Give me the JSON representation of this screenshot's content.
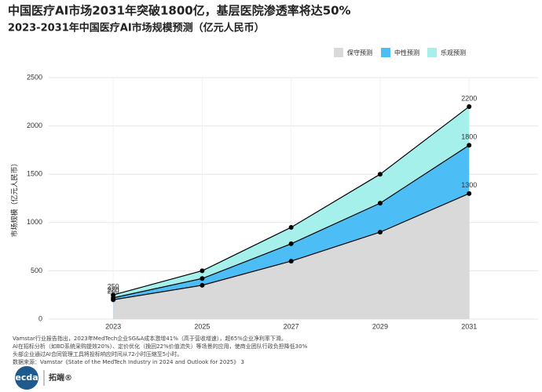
{
  "chart_data": {
    "type": "area",
    "title": "中国医疗AI市场2031年突破1800亿，基层医院渗透率将达50%",
    "subtitle": "2023-2031年中国医疗AI市场规模预测（亿元人民币）",
    "y_label": "市场规模（亿元人民币）",
    "x": [
      2023,
      2025,
      2027,
      2029,
      2031
    ],
    "xlim": [
      2021.55,
      2032.55
    ],
    "xticks": [
      2023,
      2025,
      2027,
      2029,
      2031
    ],
    "ylim": [
      0,
      2500
    ],
    "yticks": [
      0,
      500,
      1000,
      1500,
      2000,
      2500
    ],
    "grid": true,
    "legend": "top-right",
    "series": [
      {
        "name": "保守预测",
        "color": "#d9d9d9",
        "values": [
          200,
          350,
          600,
          900,
          1300
        ]
      },
      {
        "name": "中性预测",
        "color": "#4dbef5",
        "values": [
          220,
          420,
          780,
          1200,
          1800
        ]
      },
      {
        "name": "乐观预测",
        "color": "#a6f0ec",
        "values": [
          250,
          500,
          950,
          1500,
          2200
        ]
      }
    ],
    "notes": [
      "Vamstar行业报告指出，2023年MedTech企业SG&A成本激增41%（高于营收增速），超65%企业净利率下滑。",
      "AI在招标分析（如BD系统采购提效20%）、定价优化（挽回22%价值流失）等场景的应用，使商业团队行政负担降低30%",
      "头部企业通过AI合同管理工具将投标响应时间从72小时压缩至5小时。",
      "数据来源：Vamstar《State of the MedTech Industry in 2024 and Outlook for 2025》 3"
    ]
  },
  "logo": {
    "name": "tecdat",
    "brand": "拓端®"
  }
}
